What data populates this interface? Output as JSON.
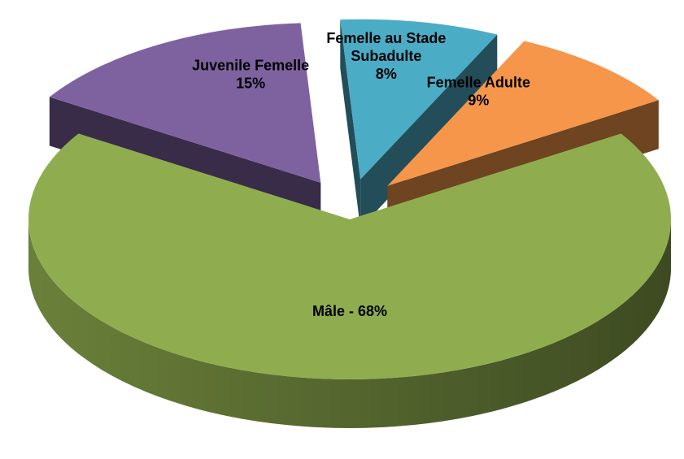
{
  "chart_data": {
    "type": "pie3d",
    "categories": [
      null,
      "Juvenile Femelle",
      "Femelle au Stade Subadulte",
      "Femelle Adulte"
    ],
    "values": [
      68,
      15,
      8,
      9
    ],
    "value_labels": [
      "Mâle - 68%",
      "15%",
      "8%",
      "9%"
    ],
    "colors": [
      "#8fad4e",
      "#7e62a0",
      "#4bacc6",
      "#f5964a"
    ]
  }
}
